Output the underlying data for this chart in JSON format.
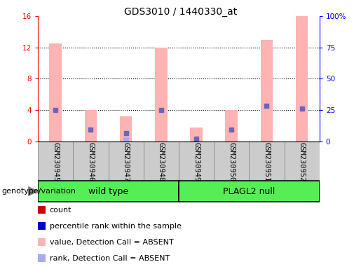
{
  "title": "GDS3010 / 1440330_at",
  "samples": [
    "GSM230945",
    "GSM230946",
    "GSM230947",
    "GSM230948",
    "GSM230949",
    "GSM230950",
    "GSM230951",
    "GSM230952"
  ],
  "pink_bar_heights": [
    12.5,
    4.0,
    3.2,
    12.0,
    1.8,
    4.0,
    13.0,
    16.0
  ],
  "blue_dot_heights": [
    4.0,
    1.5,
    1.0,
    4.0,
    0.3,
    1.5,
    4.5,
    4.2
  ],
  "blue_small_bar_heights": [
    0.0,
    0.0,
    0.5,
    0.0,
    0.3,
    0.0,
    0.0,
    0.0
  ],
  "ylim_left": [
    0,
    16
  ],
  "ylim_right": [
    0,
    100
  ],
  "yticks_left": [
    0,
    4,
    8,
    12,
    16
  ],
  "yticks_right": [
    0,
    25,
    50,
    75,
    100
  ],
  "ytick_labels_right": [
    "0",
    "25",
    "50",
    "75",
    "100%"
  ],
  "wild_type_indices": [
    0,
    1,
    2,
    3
  ],
  "plagl2_indices": [
    4,
    5,
    6,
    7
  ],
  "wild_type_label": "wild type",
  "plagl2_label": "PLAGL2 null",
  "genotype_label": "genotype/variation",
  "legend_items": [
    {
      "color": "#cc0000",
      "label": "count"
    },
    {
      "color": "#0000cc",
      "label": "percentile rank within the sample"
    },
    {
      "color": "#ffb3b3",
      "label": "value, Detection Call = ABSENT"
    },
    {
      "color": "#aaaaee",
      "label": "rank, Detection Call = ABSENT"
    }
  ],
  "pink_color": "#ffb3b3",
  "blue_dot_color": "#6666bb",
  "blue_small_bar_color": "#aaaaee",
  "group_box_color": "#cccccc",
  "green_fill": "#55ee55",
  "title_fontsize": 10,
  "tick_fontsize": 7.5,
  "legend_fontsize": 8
}
